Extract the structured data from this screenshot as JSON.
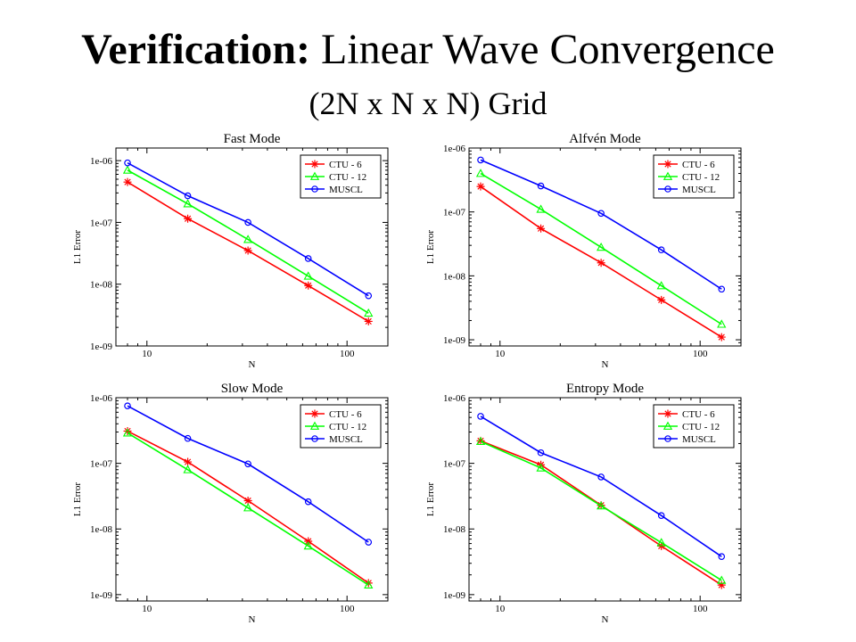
{
  "slide": {
    "title_bold": "Verification:",
    "title_rest": "Linear Wave Convergence",
    "subtitle": "(2N x N x N) Grid"
  },
  "chart_data": [
    {
      "type": "line",
      "title": "Fast Mode",
      "xlabel": "N",
      "ylabel": "L1 Error",
      "xscale": "log",
      "yscale": "log",
      "xlim": [
        7,
        160
      ],
      "ylim": [
        1e-09,
        1.6e-06
      ],
      "xticks": [
        10,
        100
      ],
      "xtick_labels": [
        "10",
        "100"
      ],
      "yticks": [
        1e-09,
        1e-08,
        1e-07,
        1e-06
      ],
      "ytick_labels": [
        "1e-09",
        "1e-08",
        "1e-07",
        "1e-06"
      ],
      "legend_position": "top-right",
      "x": [
        8,
        16,
        32,
        64,
        128
      ],
      "series": [
        {
          "name": "CTU - 6",
          "color": "#ff0000",
          "marker": "star",
          "values": [
            4.5e-07,
            1.15e-07,
            3.5e-08,
            9.5e-09,
            2.5e-09
          ]
        },
        {
          "name": "CTU - 12",
          "color": "#00ff00",
          "marker": "triangle",
          "values": [
            7e-07,
            2e-07,
            5.3e-08,
            1.35e-08,
            3.4e-09
          ]
        },
        {
          "name": "MUSCL",
          "color": "#0000ff",
          "marker": "circle",
          "values": [
            9.2e-07,
            2.7e-07,
            1e-07,
            2.6e-08,
            6.5e-09
          ]
        }
      ]
    },
    {
      "type": "line",
      "title": "Alfvén Mode",
      "xlabel": "N",
      "ylabel": "L1 Error",
      "xscale": "log",
      "yscale": "log",
      "xlim": [
        7,
        160
      ],
      "ylim": [
        8e-10,
        1e-06
      ],
      "xticks": [
        10,
        100
      ],
      "xtick_labels": [
        "10",
        "100"
      ],
      "yticks": [
        1e-09,
        1e-08,
        1e-07,
        1e-06
      ],
      "ytick_labels": [
        "1e-09",
        "1e-08",
        "1e-07",
        "1e-06"
      ],
      "legend_position": "top-right",
      "x": [
        8,
        16,
        32,
        64,
        128
      ],
      "series": [
        {
          "name": "CTU - 6",
          "color": "#ff0000",
          "marker": "star",
          "values": [
            2.5e-07,
            5.5e-08,
            1.6e-08,
            4.2e-09,
            1.1e-09
          ]
        },
        {
          "name": "CTU - 12",
          "color": "#00ff00",
          "marker": "triangle",
          "values": [
            4e-07,
            1.1e-07,
            2.8e-08,
            7e-09,
            1.75e-09
          ]
        },
        {
          "name": "MUSCL",
          "color": "#0000ff",
          "marker": "circle",
          "values": [
            6.5e-07,
            2.55e-07,
            9.5e-08,
            2.55e-08,
            6.2e-09
          ]
        }
      ]
    },
    {
      "type": "line",
      "title": "Slow Mode",
      "xlabel": "N",
      "ylabel": "L1 Error",
      "xscale": "log",
      "yscale": "log",
      "xlim": [
        7,
        160
      ],
      "ylim": [
        8e-10,
        1e-06
      ],
      "xticks": [
        10,
        100
      ],
      "xtick_labels": [
        "10",
        "100"
      ],
      "yticks": [
        1e-09,
        1e-08,
        1e-07,
        1e-06
      ],
      "ytick_labels": [
        "1e-09",
        "1e-08",
        "1e-07",
        "1e-06"
      ],
      "legend_position": "top-right",
      "x": [
        8,
        16,
        32,
        64,
        128
      ],
      "series": [
        {
          "name": "CTU - 6",
          "color": "#ff0000",
          "marker": "star",
          "values": [
            3.1e-07,
            1.05e-07,
            2.7e-08,
            6.5e-09,
            1.5e-09
          ]
        },
        {
          "name": "CTU - 12",
          "color": "#00ff00",
          "marker": "triangle",
          "values": [
            2.9e-07,
            8e-08,
            2.1e-08,
            5.5e-09,
            1.4e-09
          ]
        },
        {
          "name": "MUSCL",
          "color": "#0000ff",
          "marker": "circle",
          "values": [
            7.5e-07,
            2.4e-07,
            9.8e-08,
            2.6e-08,
            6.3e-09
          ]
        }
      ]
    },
    {
      "type": "line",
      "title": "Entropy Mode",
      "xlabel": "N",
      "ylabel": "L1 Error",
      "xscale": "log",
      "yscale": "log",
      "xlim": [
        7,
        160
      ],
      "ylim": [
        8e-10,
        1e-06
      ],
      "xticks": [
        10,
        100
      ],
      "xtick_labels": [
        "10",
        "100"
      ],
      "yticks": [
        1e-09,
        1e-08,
        1e-07,
        1e-06
      ],
      "ytick_labels": [
        "1e-09",
        "1e-08",
        "1e-07",
        "1e-06"
      ],
      "legend_position": "top-right",
      "x": [
        8,
        16,
        32,
        64,
        128
      ],
      "series": [
        {
          "name": "CTU - 6",
          "color": "#ff0000",
          "marker": "star",
          "values": [
            2.2e-07,
            9.5e-08,
            2.3e-08,
            5.5e-09,
            1.4e-09
          ]
        },
        {
          "name": "CTU - 12",
          "color": "#00ff00",
          "marker": "triangle",
          "values": [
            2.15e-07,
            8.5e-08,
            2.25e-08,
            6.2e-09,
            1.65e-09
          ]
        },
        {
          "name": "MUSCL",
          "color": "#0000ff",
          "marker": "circle",
          "values": [
            5.2e-07,
            1.45e-07,
            6.2e-08,
            1.6e-08,
            3.8e-09
          ]
        }
      ]
    }
  ]
}
